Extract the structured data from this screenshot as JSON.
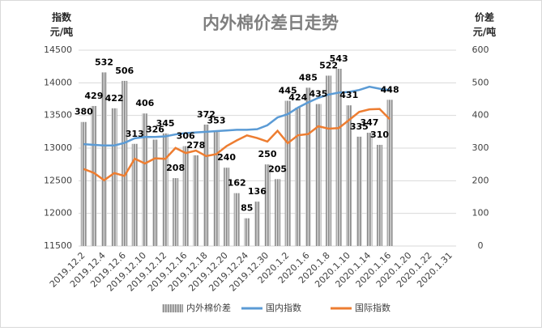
{
  "chart_data": {
    "type": "combo",
    "title": "内外棉价差日走势",
    "ylabel": [
      "指数",
      "元/吨"
    ],
    "y2label": [
      "价差",
      "元/吨"
    ],
    "categories": [
      "2019.12.2",
      null,
      "2019.12.4",
      null,
      "2019.12.6",
      null,
      "2019.12.10",
      null,
      "2019.12.12",
      null,
      "2019.12.16",
      null,
      "2019.12.18",
      null,
      "2019.12.20",
      null,
      "2019.12.24",
      null,
      "2019.12.30",
      null,
      "2020.1.2",
      null,
      "2020.1.6",
      null,
      "2020.1.8",
      null,
      "2020.1.10",
      null,
      "2020.1.14",
      null,
      "2020.1.16",
      null,
      "2020.1.20",
      null,
      "2020.1.22",
      null,
      "2020.1.31"
    ],
    "ylim": [
      11500,
      14500
    ],
    "yticks": [
      11500,
      12000,
      12500,
      13000,
      13500,
      14000,
      14500
    ],
    "y2lim": [
      0,
      600
    ],
    "y2ticks": [
      0,
      100,
      200,
      300,
      400,
      500,
      600
    ],
    "grid": true,
    "legend": "bottom",
    "series": [
      {
        "name": "内外棉价差",
        "type": "bar",
        "axis": "y2",
        "color": "#a6a6a6",
        "values": [
          380,
          429,
          532,
          422,
          506,
          313,
          406,
          326,
          345,
          208,
          306,
          278,
          372,
          353,
          240,
          162,
          85,
          136,
          250,
          205,
          445,
          424,
          485,
          435,
          522,
          543,
          431,
          335,
          347,
          310,
          448,
          null,
          null,
          null,
          null,
          null,
          null
        ]
      },
      {
        "name": "国内指数",
        "type": "line",
        "color": "#5b9bd5",
        "values": [
          13060,
          13050,
          13040,
          13040,
          13080,
          13150,
          13170,
          13170,
          13180,
          13210,
          13230,
          13240,
          13250,
          13260,
          13270,
          13280,
          13280,
          13290,
          13350,
          13470,
          13520,
          13620,
          13700,
          13770,
          13820,
          13850,
          13860,
          13890,
          13940,
          13910,
          13890,
          null,
          null,
          null,
          null,
          null,
          null
        ]
      },
      {
        "name": "国际指数",
        "type": "line",
        "color": "#ed7d31",
        "values": [
          12680,
          12621,
          12508,
          12618,
          12574,
          12837,
          12764,
          12844,
          12835,
          13002,
          12924,
          12962,
          12878,
          12907,
          13030,
          13118,
          13195,
          13154,
          13100,
          13265,
          13075,
          13196,
          13215,
          13335,
          13298,
          13307,
          13429,
          13555,
          13593,
          13600,
          13442,
          null,
          null,
          null,
          null,
          null,
          null
        ]
      }
    ]
  }
}
